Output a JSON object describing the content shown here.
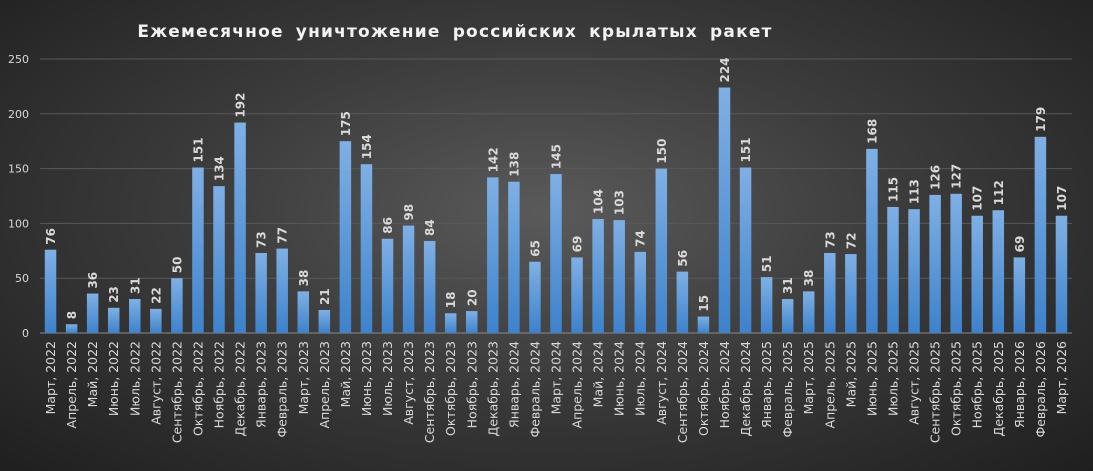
{
  "chart_data": {
    "type": "bar",
    "title": "Ежемесячное уничтожение российских крылатых ракет",
    "xlabel": "",
    "ylabel": "",
    "ylim": [
      0,
      250
    ],
    "yticks": [
      0,
      50,
      100,
      150,
      200,
      250
    ],
    "grid": true,
    "legend": "none",
    "colors": {
      "bar_top": "#7fb0e4",
      "bar_bottom": "#3d82cc",
      "grid": "#595959",
      "text": "#d9d9d9"
    },
    "categories": [
      "Март, 2022",
      "Апрель, 2022",
      "Май, 2022",
      "Июнь, 2022",
      "Июль, 2022",
      "Август, 2022",
      "Сентябрь, 2022",
      "Октябрь, 2022",
      "Ноябрь, 2022",
      "Декабрь, 2022",
      "Январь, 2023",
      "Февраль, 2023",
      "Март, 2023",
      "Апрель, 2023",
      "Май, 2023",
      "Июнь, 2023",
      "Июль, 2023",
      "Август, 2023",
      "Сентябрь, 2023",
      "Октябрь, 2023",
      "Ноябрь, 2023",
      "Декабрь, 2023",
      "Январь, 2024",
      "Февраль, 2024",
      "Март, 2024",
      "Апрель, 2024",
      "Май, 2024",
      "Июнь, 2024",
      "Июль, 2024",
      "Август, 2024",
      "Сентябрь, 2024",
      "Октябрь, 2024",
      "Ноябрь, 2024",
      "Декабрь, 2024",
      "Январь, 2025",
      "Февраль, 2025",
      "Март, 2025",
      "Апрель, 2025",
      "Май, 2025",
      "Июнь, 2025",
      "Июль, 2025",
      "Август, 2025",
      "Сентябрь, 2025",
      "Октябрь, 2025",
      "Ноябрь, 2025",
      "Декабрь, 2025",
      "Январь, 2026",
      "Февраль, 2026",
      "Март, 2026"
    ],
    "values": [
      76,
      8,
      36,
      23,
      31,
      22,
      50,
      151,
      134,
      192,
      73,
      77,
      38,
      21,
      175,
      154,
      86,
      98,
      84,
      18,
      20,
      142,
      138,
      65,
      145,
      69,
      104,
      103,
      74,
      150,
      56,
      15,
      224,
      151,
      51,
      31,
      38,
      73,
      72,
      168,
      115,
      113,
      126,
      127,
      107,
      112,
      69,
      179,
      107
    ]
  }
}
